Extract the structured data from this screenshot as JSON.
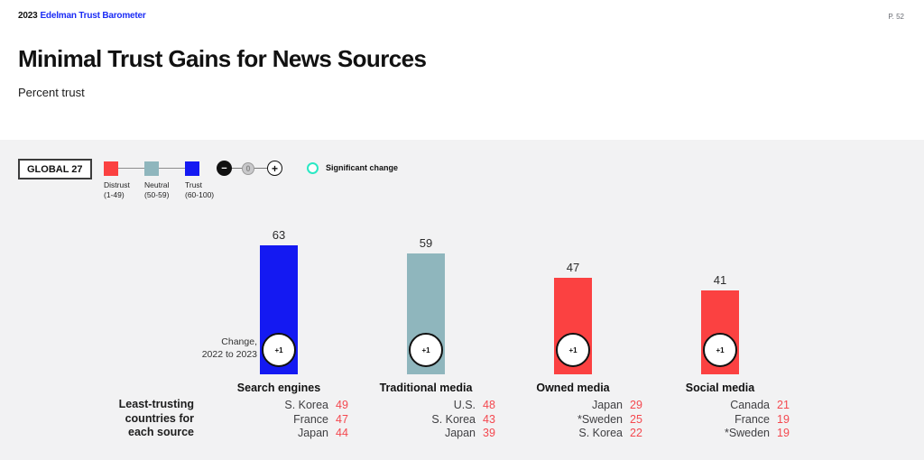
{
  "header": {
    "brand_year": "2023",
    "brand_name": "Edelman Trust Barometer",
    "page_number": "P. 52",
    "title": "Minimal Trust Gains for News Sources",
    "subtitle": "Percent trust"
  },
  "legend": {
    "global_label": "GLOBAL 27",
    "scale": [
      {
        "label": "Distrust",
        "range": "(1-49)",
        "color": "#fb4141"
      },
      {
        "label": "Neutral",
        "range": "(50-59)",
        "color": "#8fb6bd"
      },
      {
        "label": "Trust",
        "range": "(60-100)",
        "color": "#1419f2"
      }
    ],
    "change_indicator": {
      "minus": "−",
      "zero": "0",
      "plus": "+"
    },
    "significant_change_label": "Significant change",
    "significant_change_color": "#2be8c4"
  },
  "annotations": {
    "change_note": [
      "Change,",
      "2022 to 2023"
    ],
    "least_trusting_note": [
      "Least-trusting",
      "countries for",
      "each source"
    ]
  },
  "chart_data": {
    "type": "bar",
    "title": "Minimal Trust Gains for News Sources",
    "ylabel": "Percent trust",
    "ylim": [
      0,
      100
    ],
    "grid": false,
    "categories": [
      "Search engines",
      "Traditional media",
      "Owned media",
      "Social media"
    ],
    "values": [
      63,
      59,
      47,
      41
    ],
    "changes": [
      "+1",
      "+1",
      "+1",
      "+1"
    ],
    "bar_colors": [
      "#1419f2",
      "#8fb6bd",
      "#fb4141",
      "#fb4141"
    ],
    "least_trusting": [
      {
        "rows": [
          {
            "name": "S. Korea",
            "value": "49"
          },
          {
            "name": "France",
            "value": "47"
          },
          {
            "name": "Japan",
            "value": "44"
          }
        ]
      },
      {
        "rows": [
          {
            "name": "U.S.",
            "value": "48"
          },
          {
            "name": "S. Korea",
            "value": "43"
          },
          {
            "name": "Japan",
            "value": "39"
          }
        ]
      },
      {
        "rows": [
          {
            "name": "Japan",
            "value": "29"
          },
          {
            "name": "*Sweden",
            "value": "25"
          },
          {
            "name": "S. Korea",
            "value": "22"
          }
        ]
      },
      {
        "rows": [
          {
            "name": "Canada",
            "value": "21"
          },
          {
            "name": "France",
            "value": "19"
          },
          {
            "name": "*Sweden",
            "value": "19"
          }
        ]
      }
    ]
  }
}
